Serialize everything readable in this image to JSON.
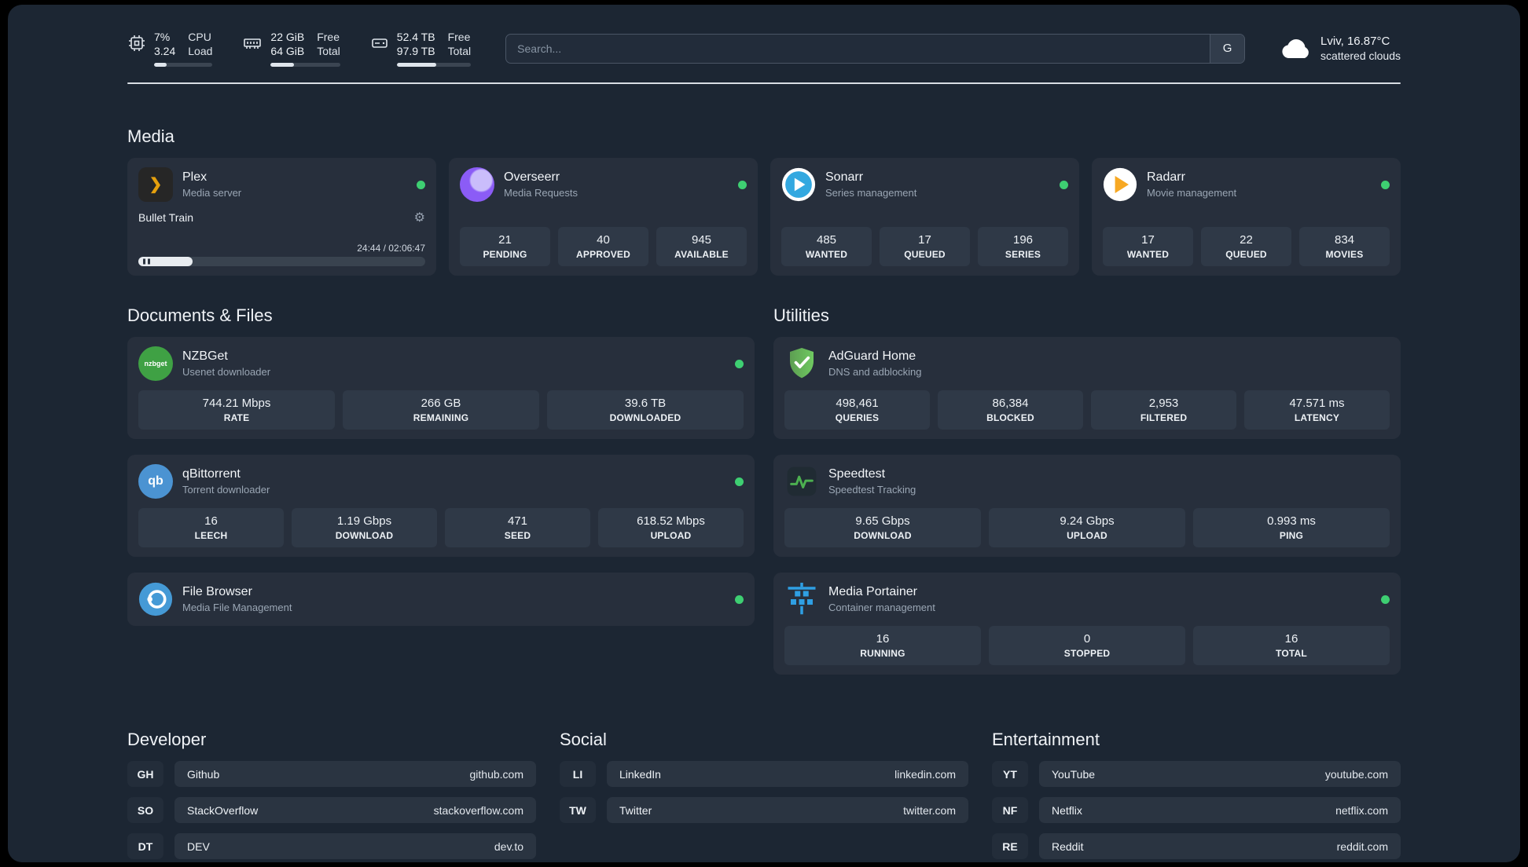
{
  "topbar": {
    "cpu": {
      "line1_value": "7%",
      "line1_label": "CPU",
      "line2_value": "3.24",
      "line2_label": "Load",
      "progress_percent": 22
    },
    "memory": {
      "line1_value": "22 GiB",
      "line1_label": "Free",
      "line2_value": "64 GiB",
      "line2_label": "Total",
      "progress_percent": 34
    },
    "disk": {
      "line1_value": "52.4 TB",
      "line1_label": "Free",
      "line2_value": "97.9 TB",
      "line2_label": "Total",
      "progress_percent": 53
    },
    "search": {
      "placeholder": "Search...",
      "engine_label": "G"
    },
    "weather": {
      "location": "Lviv, 16.87°C",
      "condition": "scattered clouds"
    }
  },
  "sections": {
    "media": {
      "title": "Media"
    },
    "documents": {
      "title": "Documents & Files"
    },
    "utilities": {
      "title": "Utilities"
    },
    "developer": {
      "title": "Developer"
    },
    "social": {
      "title": "Social"
    },
    "entertainment": {
      "title": "Entertainment"
    }
  },
  "apps": {
    "plex": {
      "name": "Plex",
      "desc": "Media server",
      "icon_glyph": "❯",
      "now_playing": "Bullet Train",
      "time": "24:44 / 02:06:47",
      "progress_percent": 19
    },
    "overseerr": {
      "name": "Overseerr",
      "desc": "Media Requests",
      "stats": [
        {
          "value": "21",
          "label": "PENDING"
        },
        {
          "value": "40",
          "label": "APPROVED"
        },
        {
          "value": "945",
          "label": "AVAILABLE"
        }
      ]
    },
    "sonarr": {
      "name": "Sonarr",
      "desc": "Series management",
      "stats": [
        {
          "value": "485",
          "label": "WANTED"
        },
        {
          "value": "17",
          "label": "QUEUED"
        },
        {
          "value": "196",
          "label": "SERIES"
        }
      ]
    },
    "radarr": {
      "name": "Radarr",
      "desc": "Movie management",
      "stats": [
        {
          "value": "17",
          "label": "WANTED"
        },
        {
          "value": "22",
          "label": "QUEUED"
        },
        {
          "value": "834",
          "label": "MOVIES"
        }
      ]
    },
    "nzbget": {
      "name": "NZBGet",
      "desc": "Usenet downloader",
      "icon_text": "nzbget",
      "stats": [
        {
          "value": "744.21 Mbps",
          "label": "RATE"
        },
        {
          "value": "266 GB",
          "label": "REMAINING"
        },
        {
          "value": "39.6 TB",
          "label": "DOWNLOADED"
        }
      ]
    },
    "qbittorrent": {
      "name": "qBittorrent",
      "desc": "Torrent downloader",
      "icon_text": "qb",
      "stats": [
        {
          "value": "16",
          "label": "LEECH"
        },
        {
          "value": "1.19 Gbps",
          "label": "DOWNLOAD"
        },
        {
          "value": "471",
          "label": "SEED"
        },
        {
          "value": "618.52 Mbps",
          "label": "UPLOAD"
        }
      ]
    },
    "filebrowser": {
      "name": "File Browser",
      "desc": "Media File Management"
    },
    "adguard": {
      "name": "AdGuard Home",
      "desc": "DNS and adblocking",
      "stats": [
        {
          "value": "498,461",
          "label": "QUERIES"
        },
        {
          "value": "86,384",
          "label": "BLOCKED"
        },
        {
          "value": "2,953",
          "label": "FILTERED"
        },
        {
          "value": "47.571 ms",
          "label": "LATENCY"
        }
      ]
    },
    "speedtest": {
      "name": "Speedtest",
      "desc": "Speedtest Tracking",
      "stats": [
        {
          "value": "9.65 Gbps",
          "label": "DOWNLOAD"
        },
        {
          "value": "9.24 Gbps",
          "label": "UPLOAD"
        },
        {
          "value": "0.993 ms",
          "label": "PING"
        }
      ]
    },
    "portainer": {
      "name": "Media Portainer",
      "desc": "Container management",
      "stats": [
        {
          "value": "16",
          "label": "RUNNING"
        },
        {
          "value": "0",
          "label": "STOPPED"
        },
        {
          "value": "16",
          "label": "TOTAL"
        }
      ]
    }
  },
  "bookmarks": {
    "developer": [
      {
        "abbr": "GH",
        "name": "Github",
        "url": "github.com"
      },
      {
        "abbr": "SO",
        "name": "StackOverflow",
        "url": "stackoverflow.com"
      },
      {
        "abbr": "DT",
        "name": "DEV",
        "url": "dev.to"
      }
    ],
    "social": [
      {
        "abbr": "LI",
        "name": "LinkedIn",
        "url": "linkedin.com"
      },
      {
        "abbr": "TW",
        "name": "Twitter",
        "url": "twitter.com"
      }
    ],
    "entertainment": [
      {
        "abbr": "YT",
        "name": "YouTube",
        "url": "youtube.com"
      },
      {
        "abbr": "NF",
        "name": "Netflix",
        "url": "netflix.com"
      },
      {
        "abbr": "RE",
        "name": "Reddit",
        "url": "reddit.com"
      }
    ]
  }
}
